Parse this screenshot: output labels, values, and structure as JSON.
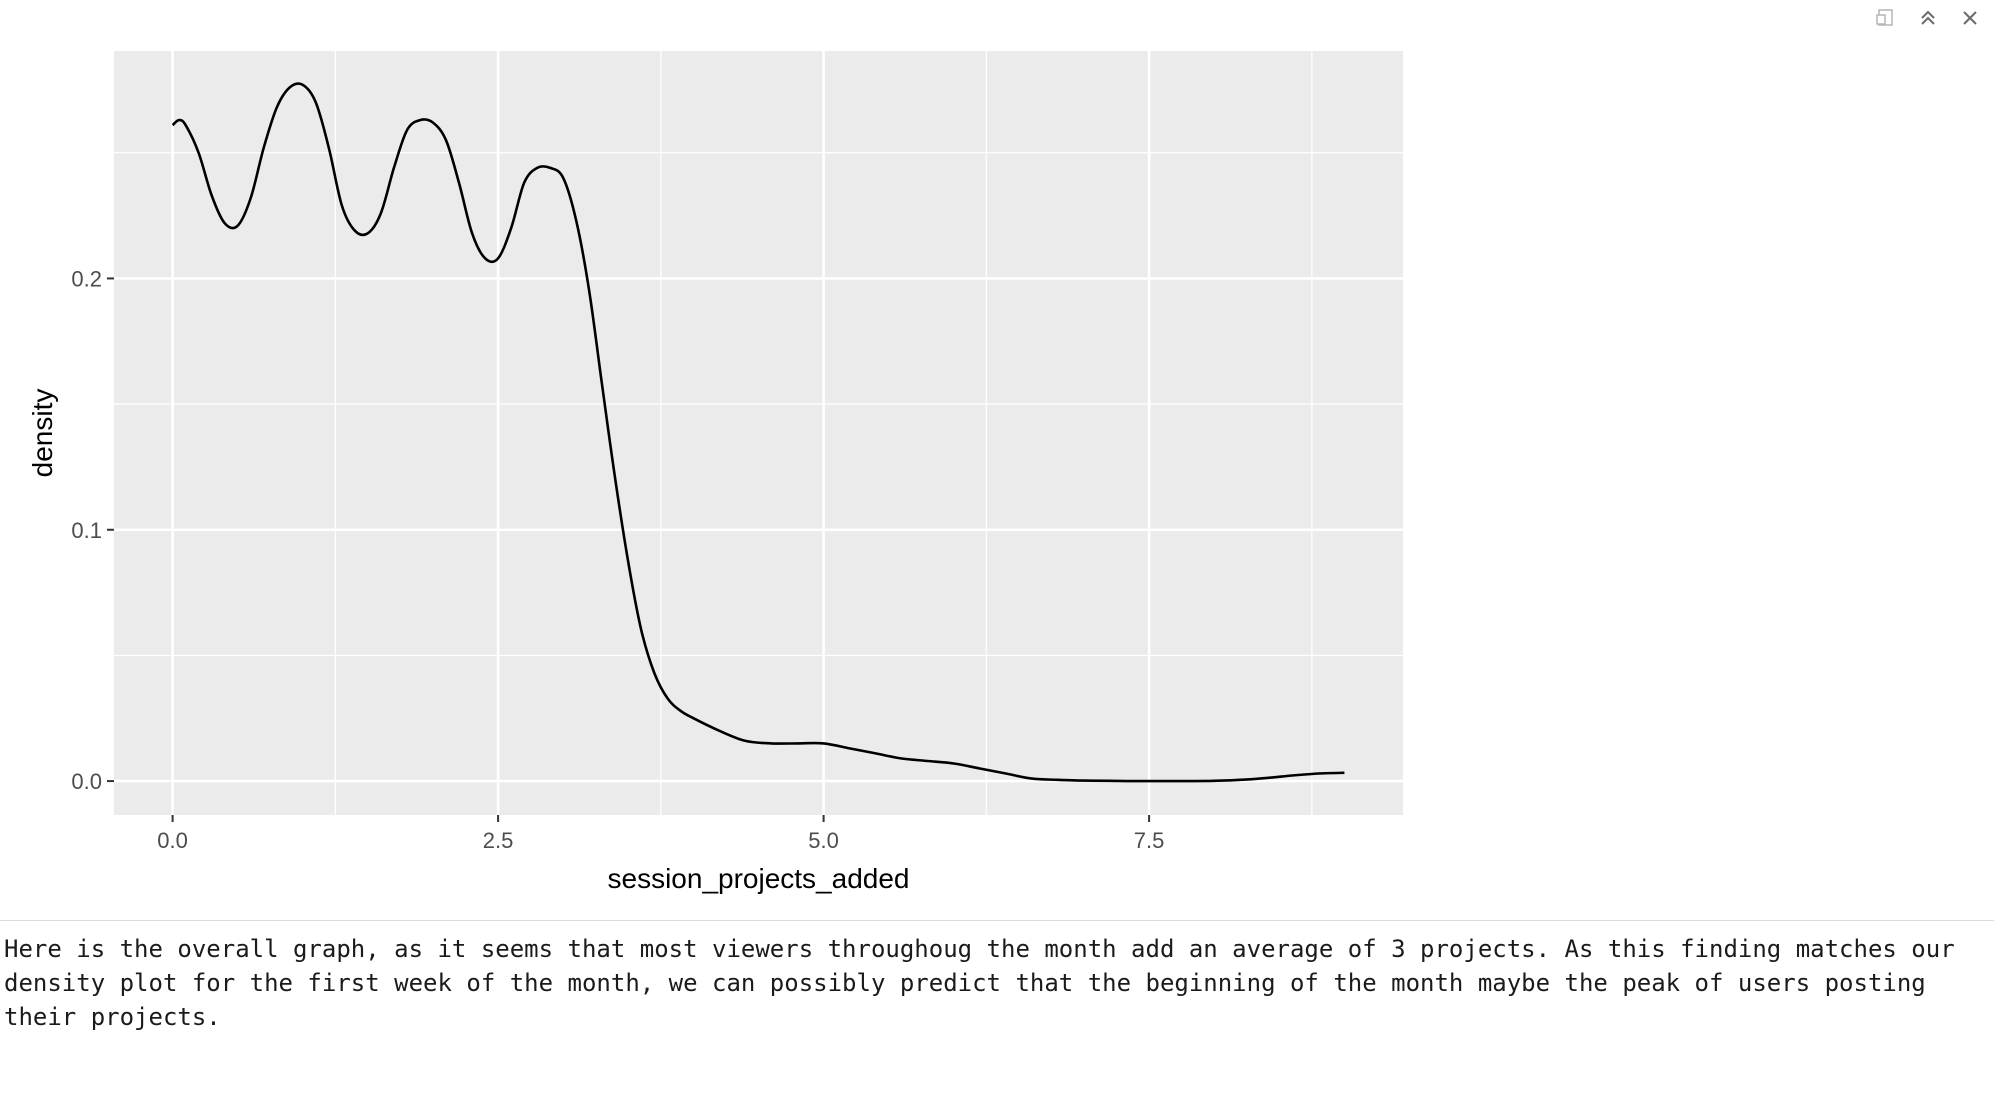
{
  "toolbar": {
    "icons": [
      "show-in-new-window-icon",
      "collapse-icon",
      "close-icon"
    ],
    "icon_color": "#6b6b6b"
  },
  "chart_data": {
    "type": "line",
    "subtype": "density",
    "xlabel": "session_projects_added",
    "ylabel": "density",
    "xlim": [
      -0.45,
      9.45
    ],
    "ylim": [
      -0.0135,
      0.2905
    ],
    "x_ticks": [
      0.0,
      2.5,
      5.0,
      7.5
    ],
    "x_tick_labels": [
      "0.0",
      "2.5",
      "5.0",
      "7.5"
    ],
    "y_ticks": [
      0.0,
      0.1,
      0.2
    ],
    "y_tick_labels": [
      "0.0",
      "0.1",
      "0.2"
    ],
    "grid": true,
    "panel_background": "#ebebeb",
    "grid_color": "#ffffff",
    "line_color": "#000000",
    "series": [
      {
        "x": [
          0.0,
          0.05,
          0.1,
          0.2,
          0.3,
          0.4,
          0.5,
          0.6,
          0.7,
          0.8,
          0.9,
          1.0,
          1.1,
          1.2,
          1.3,
          1.4,
          1.5,
          1.6,
          1.7,
          1.8,
          1.9,
          2.0,
          2.1,
          2.2,
          2.3,
          2.4,
          2.5,
          2.6,
          2.7,
          2.8,
          2.9,
          3.0,
          3.1,
          3.2,
          3.3,
          3.4,
          3.5,
          3.6,
          3.7,
          3.8,
          3.9,
          4.0,
          4.2,
          4.4,
          4.6,
          4.8,
          5.0,
          5.2,
          5.4,
          5.6,
          5.8,
          6.0,
          6.2,
          6.4,
          6.6,
          6.8,
          7.0,
          7.2,
          7.5,
          8.0,
          8.3,
          8.6,
          8.8,
          9.0
        ],
        "y": [
          0.261,
          0.263,
          0.261,
          0.25,
          0.233,
          0.222,
          0.221,
          0.232,
          0.252,
          0.268,
          0.276,
          0.277,
          0.27,
          0.252,
          0.229,
          0.219,
          0.218,
          0.226,
          0.244,
          0.259,
          0.263,
          0.262,
          0.255,
          0.238,
          0.218,
          0.208,
          0.208,
          0.22,
          0.238,
          0.244,
          0.244,
          0.24,
          0.223,
          0.195,
          0.157,
          0.12,
          0.087,
          0.06,
          0.043,
          0.033,
          0.028,
          0.025,
          0.02,
          0.016,
          0.015,
          0.015,
          0.015,
          0.013,
          0.011,
          0.009,
          0.008,
          0.007,
          0.005,
          0.003,
          0.001,
          0.0005,
          0.0002,
          0.0001,
          0.0,
          0.0001,
          0.0008,
          0.0022,
          0.003,
          0.0033
        ]
      }
    ]
  },
  "note": {
    "text": "Here is the overall graph, as it seems that most viewers throughoug the month add an average of 3 projects. As this finding matches our density plot for the first week of the month, we can possibly predict that the beginning of the month maybe the peak of users posting their projects."
  }
}
